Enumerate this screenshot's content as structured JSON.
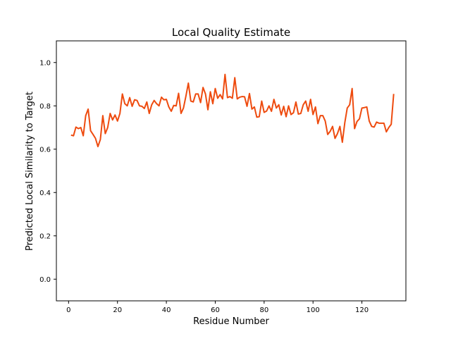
{
  "chart_data": {
    "type": "line",
    "title": "Local Quality Estimate",
    "xlabel": "Residue Number",
    "ylabel": "Predicted Local Similarity to Target",
    "xlim": [
      -5,
      138
    ],
    "ylim": [
      -0.1,
      1.1
    ],
    "xticks": [
      0,
      20,
      40,
      60,
      80,
      100,
      120
    ],
    "yticks": [
      0.0,
      0.2,
      0.4,
      0.6,
      0.8,
      1.0
    ],
    "xtick_labels": [
      "0",
      "20",
      "40",
      "60",
      "80",
      "100",
      "120"
    ],
    "ytick_labels": [
      "0.0",
      "0.2",
      "0.4",
      "0.6",
      "0.8",
      "1.0"
    ],
    "grid": false,
    "legend": "none",
    "line_color": "#ee4b0f",
    "series": [
      {
        "x": [
          1,
          2,
          3,
          4,
          5,
          6,
          7,
          8,
          9,
          10,
          11,
          12,
          13,
          14,
          15,
          16,
          17,
          18,
          19,
          20,
          21,
          22,
          23,
          24,
          25,
          26,
          27,
          28,
          29,
          30,
          31,
          32,
          33,
          34,
          35,
          36,
          37,
          38,
          39,
          40,
          41,
          42,
          43,
          44,
          45,
          46,
          47,
          48,
          49,
          50,
          51,
          52,
          53,
          54,
          55,
          56,
          57,
          58,
          59,
          60,
          61,
          62,
          63,
          64,
          65,
          66,
          67,
          68,
          69,
          70,
          71,
          72,
          73,
          74,
          75,
          76,
          77,
          78,
          79,
          80,
          81,
          82,
          83,
          84,
          85,
          86,
          87,
          88,
          89,
          90,
          91,
          92,
          93,
          94,
          95,
          96,
          97,
          98,
          99,
          100,
          101,
          102,
          103,
          104,
          105,
          106,
          107,
          108,
          109,
          110,
          111,
          112,
          113,
          114,
          115,
          116,
          117,
          118,
          119,
          120,
          121,
          122,
          123,
          124,
          125,
          126,
          127,
          128,
          129,
          130,
          131,
          132,
          133
        ],
        "y": [
          0.665,
          0.662,
          0.702,
          0.695,
          0.7,
          0.662,
          0.755,
          0.785,
          0.685,
          0.668,
          0.65,
          0.612,
          0.645,
          0.755,
          0.672,
          0.7,
          0.765,
          0.735,
          0.758,
          0.73,
          0.765,
          0.855,
          0.81,
          0.8,
          0.838,
          0.798,
          0.828,
          0.825,
          0.8,
          0.798,
          0.788,
          0.818,
          0.765,
          0.805,
          0.825,
          0.81,
          0.8,
          0.84,
          0.828,
          0.83,
          0.795,
          0.775,
          0.802,
          0.8,
          0.858,
          0.765,
          0.79,
          0.845,
          0.905,
          0.822,
          0.818,
          0.855,
          0.855,
          0.815,
          0.885,
          0.855,
          0.782,
          0.865,
          0.81,
          0.88,
          0.835,
          0.852,
          0.832,
          0.945,
          0.838,
          0.843,
          0.835,
          0.93,
          0.832,
          0.84,
          0.843,
          0.842,
          0.798,
          0.857,
          0.785,
          0.795,
          0.748,
          0.75,
          0.822,
          0.77,
          0.776,
          0.8,
          0.775,
          0.83,
          0.79,
          0.805,
          0.758,
          0.798,
          0.75,
          0.8,
          0.76,
          0.768,
          0.818,
          0.762,
          0.765,
          0.805,
          0.822,
          0.775,
          0.83,
          0.76,
          0.795,
          0.718,
          0.755,
          0.755,
          0.73,
          0.668,
          0.682,
          0.705,
          0.65,
          0.672,
          0.705,
          0.632,
          0.722,
          0.79,
          0.805,
          0.88,
          0.695,
          0.728,
          0.74,
          0.79,
          0.792,
          0.795,
          0.73,
          0.705,
          0.702,
          0.725,
          0.72,
          0.72,
          0.72,
          0.68,
          0.7,
          0.715,
          0.855
        ]
      }
    ]
  }
}
